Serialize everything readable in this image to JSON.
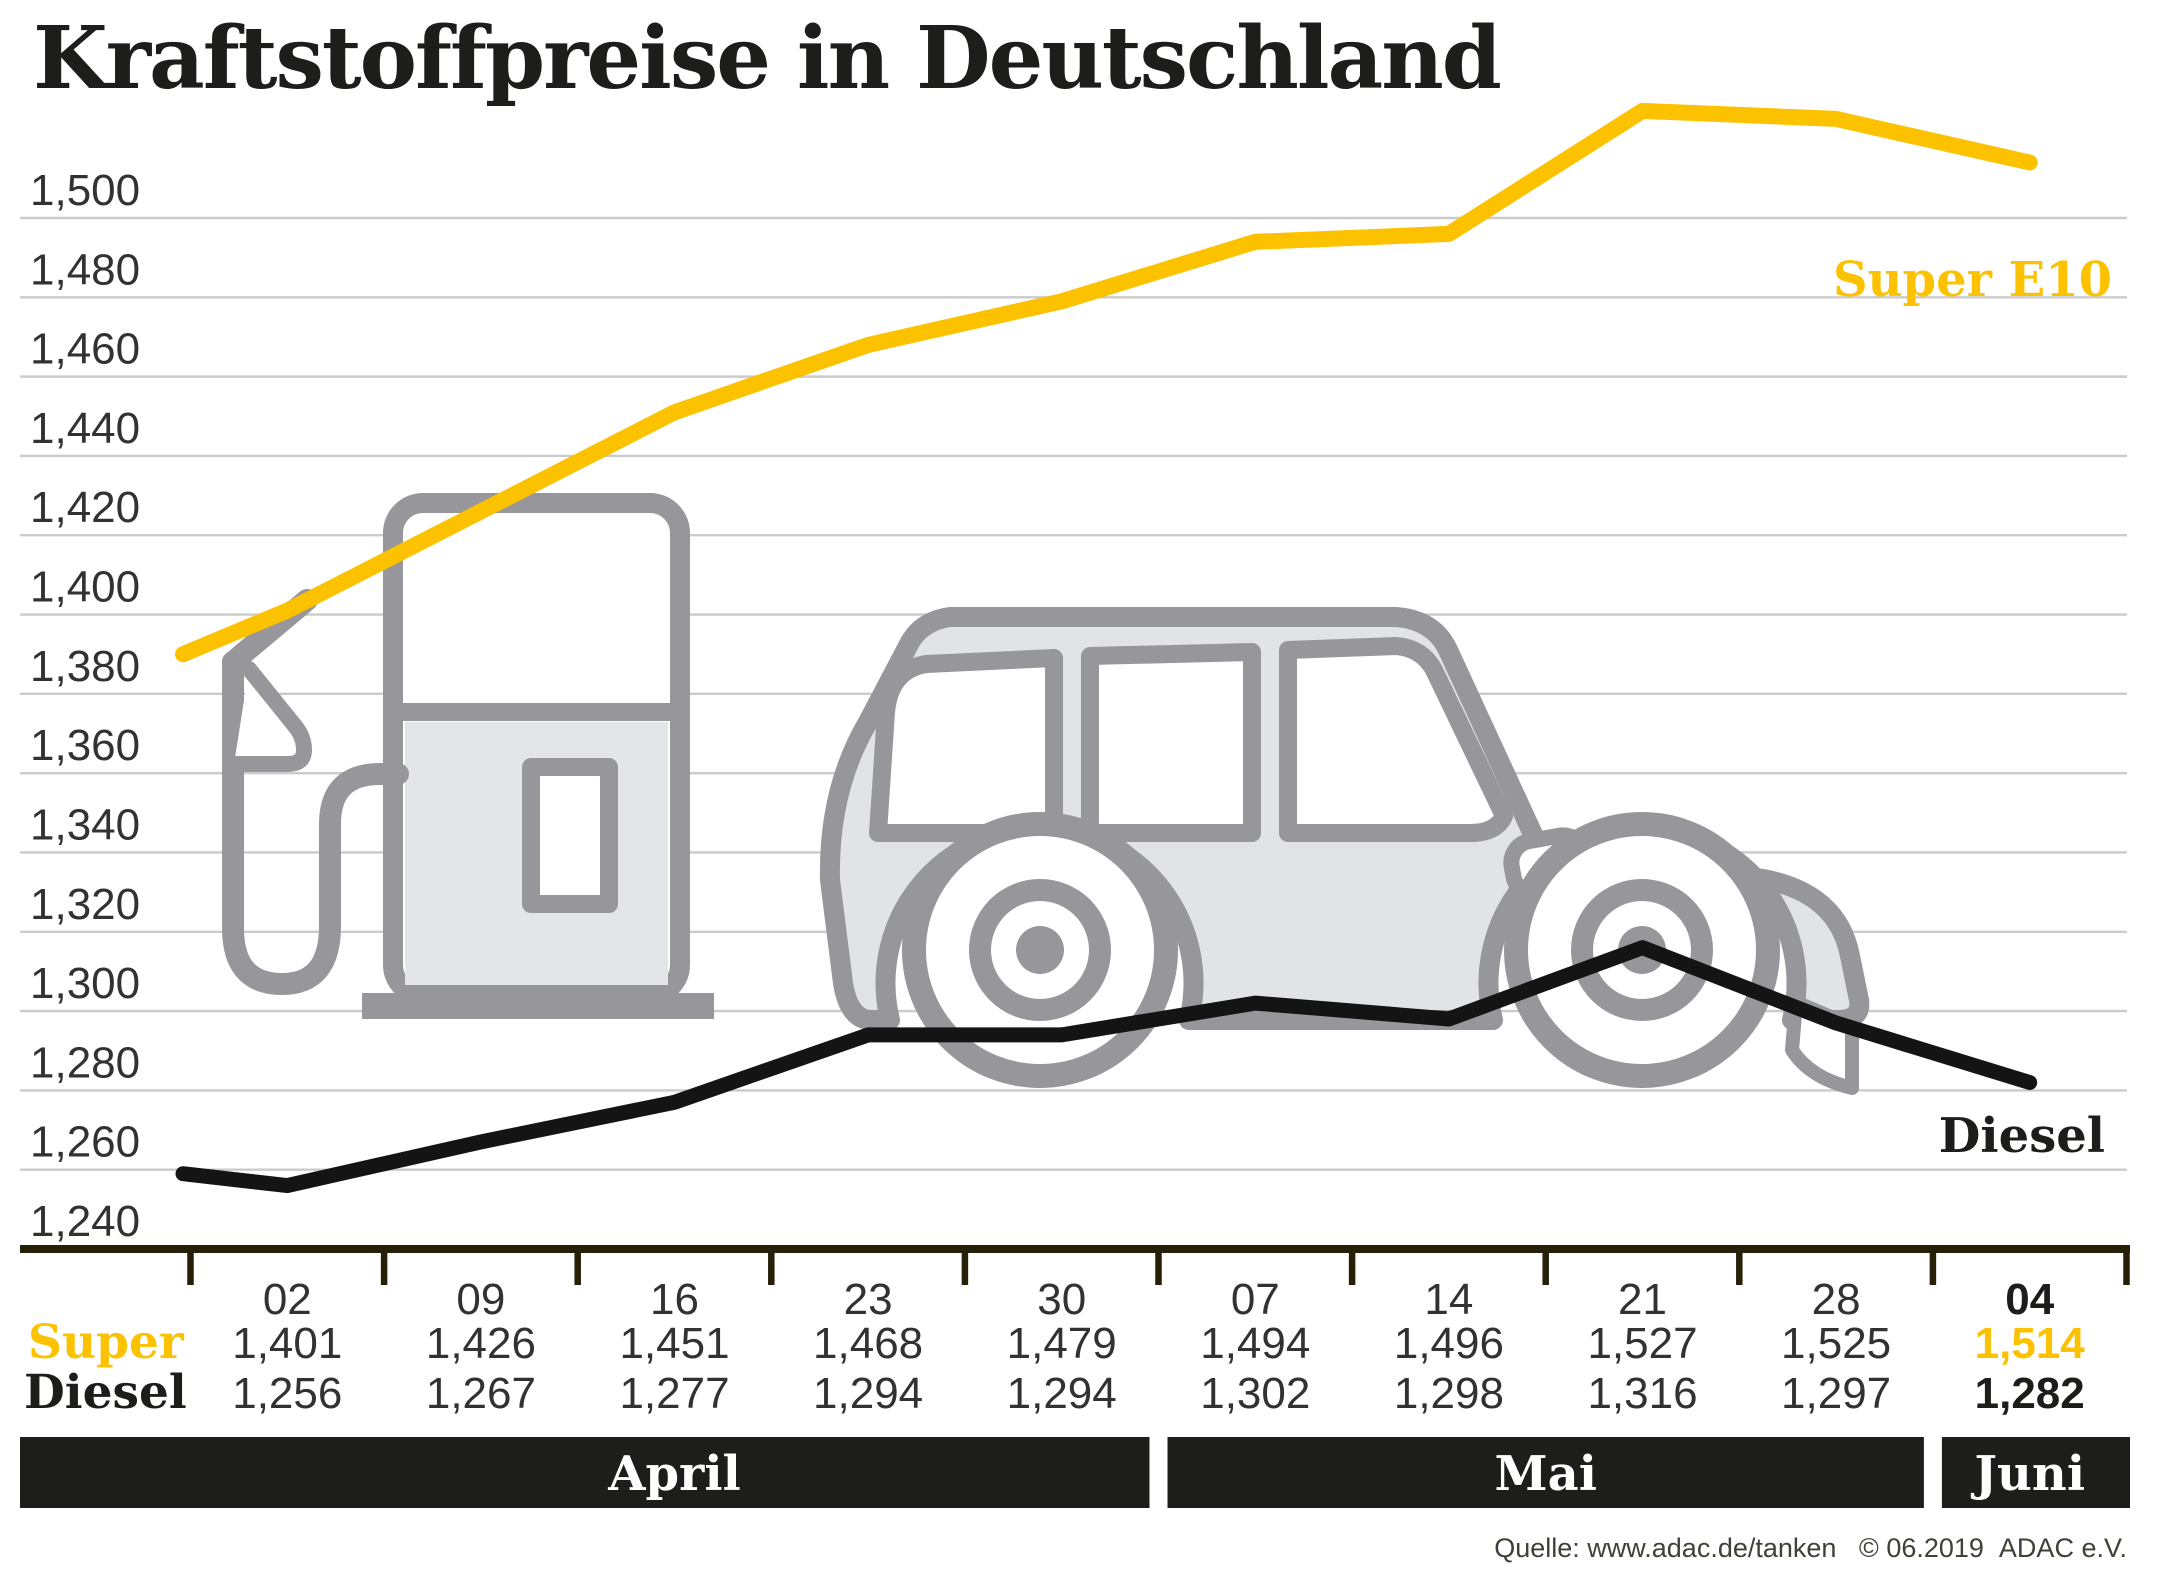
{
  "title": "Kraftstoffpreise in Deutschland",
  "legend": {
    "super": "Super E10",
    "diesel": "Diesel"
  },
  "table": {
    "super_label": "Super",
    "diesel_label": "Diesel"
  },
  "source_text": "Quelle: www.adac.de/tanken   © 06.2019  ADAC e.V.",
  "icons": {
    "pump": "fuel-pump-icon",
    "car": "car-icon"
  },
  "colors": {
    "super_yellow": "#fcc200",
    "diesel_black": "#141414",
    "grid": "#cbcbcb",
    "axis": "#262008",
    "band_bg": "#1d1d1b",
    "band_text": "#ffffff",
    "num_text": "#323232",
    "dark_text": "#1d1d1b",
    "icon_stroke": "#97979b",
    "icon_fill": "#e2e3e6",
    "pump_panel": "#e4e5e7",
    "source_text": "#413f37"
  },
  "chart_data": {
    "type": "line",
    "title": "Kraftstoffpreise in Deutschland",
    "categories": [
      "02",
      "09",
      "16",
      "23",
      "30",
      "07",
      "14",
      "21",
      "28",
      "04"
    ],
    "months": [
      {
        "label": "April",
        "start_col": 0,
        "end_col": 4
      },
      {
        "label": "Mai",
        "start_col": 5,
        "end_col": 8
      },
      {
        "label": "Juni",
        "start_col": 9,
        "end_col": 9
      }
    ],
    "series": [
      {
        "name": "Super E10",
        "color": "#fcc200",
        "values": [
          1401,
          1426,
          1451,
          1468,
          1479,
          1494,
          1496,
          1527,
          1525,
          1514
        ],
        "display": [
          "1,401",
          "1,426",
          "1,451",
          "1,468",
          "1,479",
          "1,494",
          "1,496",
          "1,527",
          "1,525",
          "1,514"
        ]
      },
      {
        "name": "Diesel",
        "color": "#141414",
        "values": [
          1256,
          1267,
          1277,
          1294,
          1294,
          1302,
          1298,
          1316,
          1297,
          1282
        ],
        "display": [
          "1,256",
          "1,267",
          "1,277",
          "1,294",
          "1,294",
          "1,302",
          "1,298",
          "1,316",
          "1,297",
          "1,282"
        ]
      }
    ],
    "lead_in": {
      "super": 1390,
      "diesel": 1259
    },
    "y_axis": {
      "min": 1240,
      "max": 1500,
      "step": 20,
      "tick_labels": [
        "1,500",
        "1,480",
        "1,460",
        "1,440",
        "1,420",
        "1,400",
        "1,380",
        "1,360",
        "1,340",
        "1,320",
        "1,300",
        "1,280",
        "1,260",
        "1,240"
      ]
    },
    "grid": true,
    "legend_position": "inline-right",
    "last_column_bold": true
  }
}
